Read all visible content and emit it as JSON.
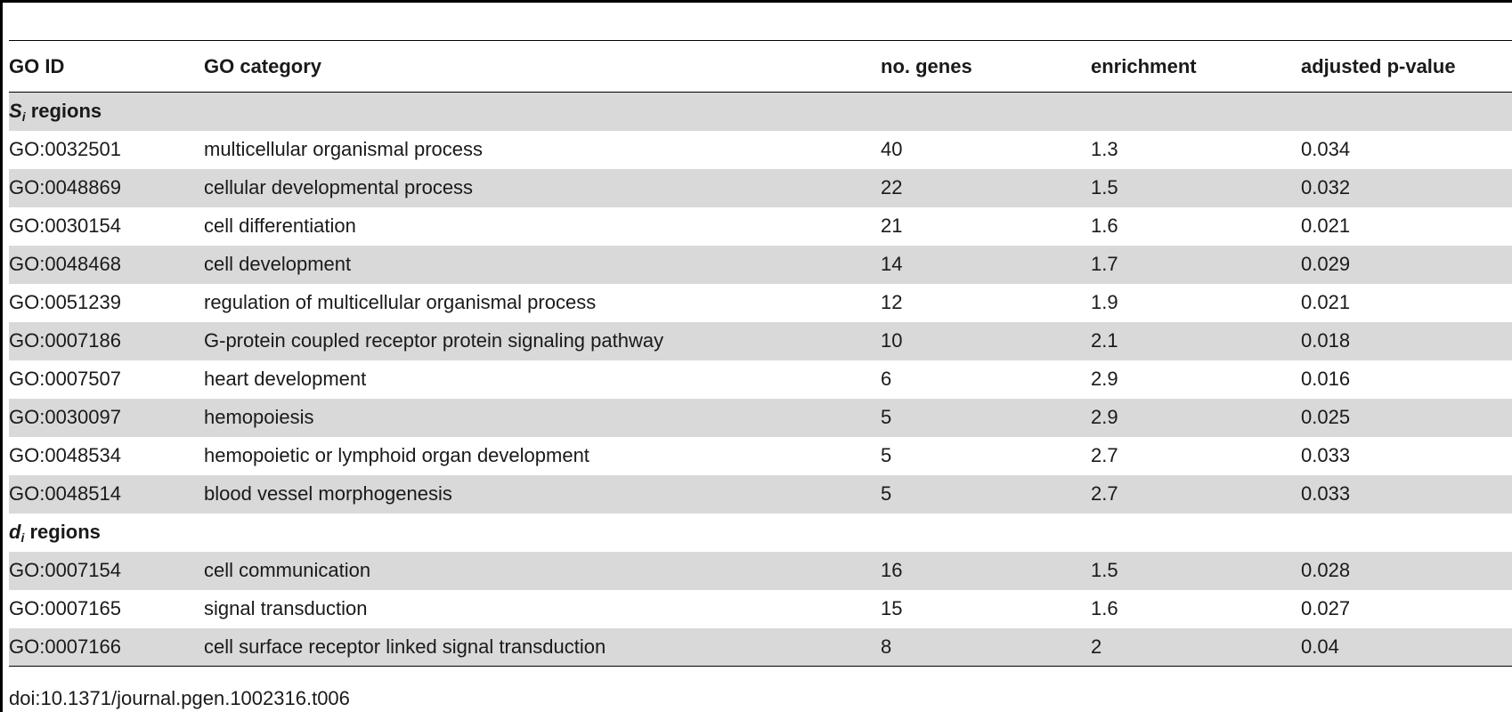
{
  "table": {
    "headers": [
      "GO ID",
      "GO category",
      "no. genes",
      "enrichment",
      "adjusted p-value"
    ],
    "sections": [
      {
        "title_var": "S",
        "title_sub": "i",
        "title_rest": " regions",
        "rows": [
          [
            "GO:0032501",
            "multicellular organismal process",
            "40",
            "1.3",
            "0.034"
          ],
          [
            "GO:0048869",
            "cellular developmental process",
            "22",
            "1.5",
            "0.032"
          ],
          [
            "GO:0030154",
            "cell differentiation",
            "21",
            "1.6",
            "0.021"
          ],
          [
            "GO:0048468",
            "cell development",
            "14",
            "1.7",
            "0.029"
          ],
          [
            "GO:0051239",
            "regulation of multicellular organismal process",
            "12",
            "1.9",
            "0.021"
          ],
          [
            "GO:0007186",
            "G-protein coupled receptor protein signaling pathway",
            "10",
            "2.1",
            "0.018"
          ],
          [
            "GO:0007507",
            "heart development",
            "6",
            "2.9",
            "0.016"
          ],
          [
            "GO:0030097",
            "hemopoiesis",
            "5",
            "2.9",
            "0.025"
          ],
          [
            "GO:0048534",
            "hemopoietic or lymphoid organ development",
            "5",
            "2.7",
            "0.033"
          ],
          [
            "GO:0048514",
            "blood vessel morphogenesis",
            "5",
            "2.7",
            "0.033"
          ]
        ]
      },
      {
        "title_var": "d",
        "title_sub": "i",
        "title_rest": " regions",
        "rows": [
          [
            "GO:0007154",
            "cell communication",
            "16",
            "1.5",
            "0.028"
          ],
          [
            "GO:0007165",
            "signal transduction",
            "15",
            "1.6",
            "0.027"
          ],
          [
            "GO:0007166",
            "cell surface receptor linked signal transduction",
            "8",
            "2",
            "0.04"
          ]
        ]
      }
    ]
  },
  "footer": {
    "doi": "doi:10.1371/journal.pgen.1002316.t006"
  },
  "colors": {
    "shade": "#d9d9d9",
    "rule": "#000000",
    "text": "#1a1a1a"
  }
}
